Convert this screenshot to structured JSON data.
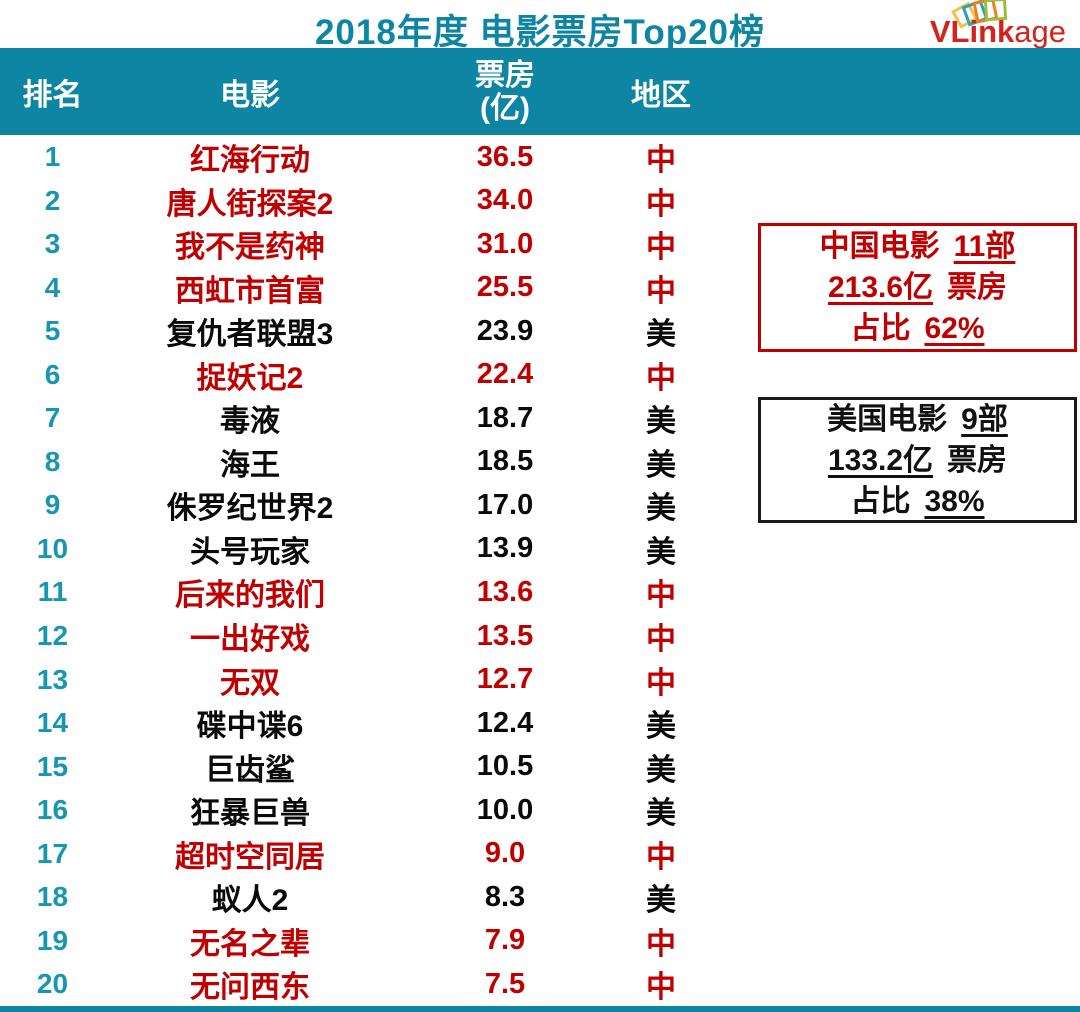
{
  "page": {
    "title": "2018年度 电影票房Top20榜"
  },
  "logo": {
    "text_bold": "VLink",
    "text_light": "age",
    "mark": "stacked-cards-icon"
  },
  "colors": {
    "teal_band": "#0E86A3",
    "rank_teal": "#1796B2",
    "china_red": "#C00000",
    "usa_black": "#0A0A0A",
    "logo_red": "#D2241E"
  },
  "table": {
    "headers": {
      "rank": "排名",
      "movie": "电影",
      "boxoffice_l1": "票房",
      "boxoffice_l2": "(亿)",
      "region": "地区"
    },
    "rows": [
      {
        "rank": "1",
        "movie": "红海行动",
        "boxoffice": "36.5",
        "region": "中",
        "origin": "cn"
      },
      {
        "rank": "2",
        "movie": "唐人街探案2",
        "boxoffice": "34.0",
        "region": "中",
        "origin": "cn"
      },
      {
        "rank": "3",
        "movie": "我不是药神",
        "boxoffice": "31.0",
        "region": "中",
        "origin": "cn"
      },
      {
        "rank": "4",
        "movie": "西虹市首富",
        "boxoffice": "25.5",
        "region": "中",
        "origin": "cn"
      },
      {
        "rank": "5",
        "movie": "复仇者联盟3",
        "boxoffice": "23.9",
        "region": "美",
        "origin": "us"
      },
      {
        "rank": "6",
        "movie": "捉妖记2",
        "boxoffice": "22.4",
        "region": "中",
        "origin": "cn"
      },
      {
        "rank": "7",
        "movie": "毒液",
        "boxoffice": "18.7",
        "region": "美",
        "origin": "us"
      },
      {
        "rank": "8",
        "movie": "海王",
        "boxoffice": "18.5",
        "region": "美",
        "origin": "us"
      },
      {
        "rank": "9",
        "movie": "侏罗纪世界2",
        "boxoffice": "17.0",
        "region": "美",
        "origin": "us"
      },
      {
        "rank": "10",
        "movie": "头号玩家",
        "boxoffice": "13.9",
        "region": "美",
        "origin": "us"
      },
      {
        "rank": "11",
        "movie": "后来的我们",
        "boxoffice": "13.6",
        "region": "中",
        "origin": "cn"
      },
      {
        "rank": "12",
        "movie": "一出好戏",
        "boxoffice": "13.5",
        "region": "中",
        "origin": "cn"
      },
      {
        "rank": "13",
        "movie": "无双",
        "boxoffice": "12.7",
        "region": "中",
        "origin": "cn"
      },
      {
        "rank": "14",
        "movie": "碟中谍6",
        "boxoffice": "12.4",
        "region": "美",
        "origin": "us"
      },
      {
        "rank": "15",
        "movie": "巨齿鲨",
        "boxoffice": "10.5",
        "region": "美",
        "origin": "us"
      },
      {
        "rank": "16",
        "movie": "狂暴巨兽",
        "boxoffice": "10.0",
        "region": "美",
        "origin": "us"
      },
      {
        "rank": "17",
        "movie": "超时空同居",
        "boxoffice": "9.0",
        "region": "中",
        "origin": "cn"
      },
      {
        "rank": "18",
        "movie": "蚁人2",
        "boxoffice": "8.3",
        "region": "美",
        "origin": "us"
      },
      {
        "rank": "19",
        "movie": "无名之辈",
        "boxoffice": "7.9",
        "region": "中",
        "origin": "cn"
      },
      {
        "rank": "20",
        "movie": "无问西东",
        "boxoffice": "7.5",
        "region": "中",
        "origin": "cn"
      }
    ]
  },
  "summary_boxes": {
    "china": {
      "label": "中国电影",
      "count": "11部",
      "total": "213.6亿",
      "total_label": "票房",
      "share_label": "占比",
      "share": "62%"
    },
    "usa": {
      "label": "美国电影",
      "count": "9部",
      "total": "133.2亿",
      "total_label": "票房",
      "share_label": "占比",
      "share": "38%"
    }
  },
  "chart_data": {
    "type": "table",
    "title": "2018年度 电影票房Top20榜",
    "columns": [
      "排名",
      "电影",
      "票房(亿)",
      "地区"
    ],
    "rows": [
      [
        1,
        "红海行动",
        36.5,
        "中"
      ],
      [
        2,
        "唐人街探案2",
        34.0,
        "中"
      ],
      [
        3,
        "我不是药神",
        31.0,
        "中"
      ],
      [
        4,
        "西虹市首富",
        25.5,
        "中"
      ],
      [
        5,
        "复仇者联盟3",
        23.9,
        "美"
      ],
      [
        6,
        "捉妖记2",
        22.4,
        "中"
      ],
      [
        7,
        "毒液",
        18.7,
        "美"
      ],
      [
        8,
        "海王",
        18.5,
        "美"
      ],
      [
        9,
        "侏罗纪世界2",
        17.0,
        "美"
      ],
      [
        10,
        "头号玩家",
        13.9,
        "美"
      ],
      [
        11,
        "后来的我们",
        13.6,
        "中"
      ],
      [
        12,
        "一出好戏",
        13.5,
        "中"
      ],
      [
        13,
        "无双",
        12.7,
        "中"
      ],
      [
        14,
        "碟中谍6",
        12.4,
        "美"
      ],
      [
        15,
        "巨齿鲨",
        10.5,
        "美"
      ],
      [
        16,
        "狂暴巨兽",
        10.0,
        "美"
      ],
      [
        17,
        "超时空同居",
        9.0,
        "中"
      ],
      [
        18,
        "蚁人2",
        8.3,
        "美"
      ],
      [
        19,
        "无名之辈",
        7.9,
        "中"
      ],
      [
        20,
        "无问西东",
        7.5,
        "中"
      ]
    ],
    "annotations": [
      {
        "group": "中国电影",
        "count": 11,
        "total_box_office_yi": 213.6,
        "share": "62%"
      },
      {
        "group": "美国电影",
        "count": 9,
        "total_box_office_yi": 133.2,
        "share": "38%"
      }
    ]
  }
}
